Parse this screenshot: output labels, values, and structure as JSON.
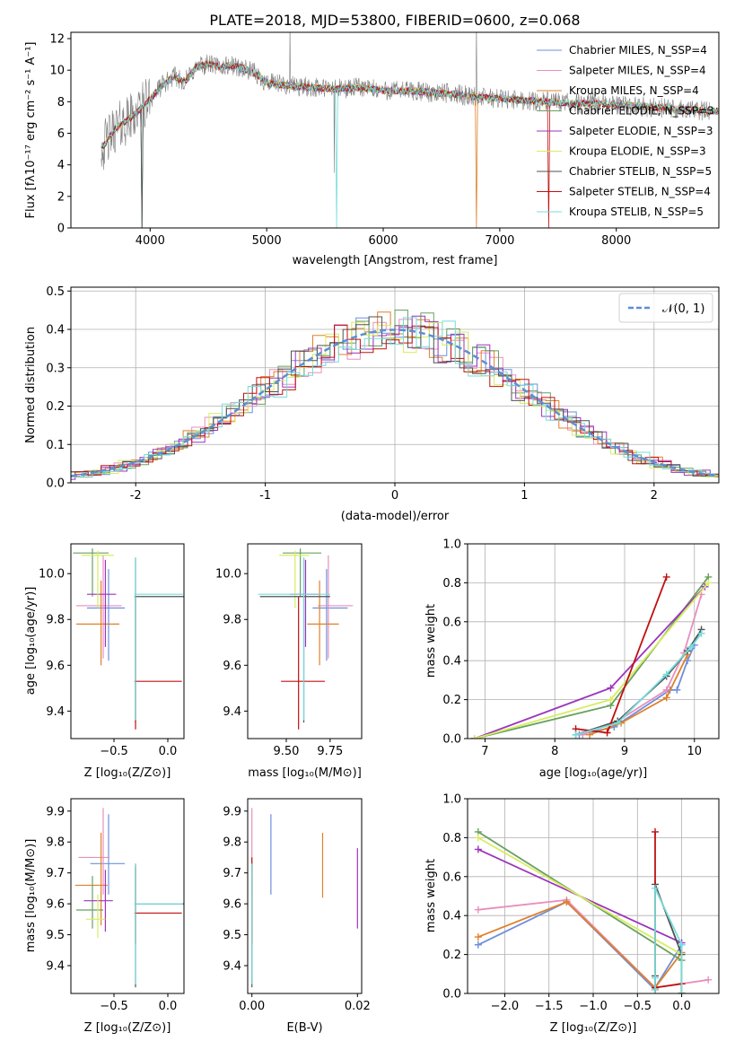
{
  "chart_data": [
    {
      "id": "spectrum",
      "type": "line",
      "title": "PLATE=2018, MJD=53800, FIBERID=0600, z=0.068",
      "xlabel": "wavelength [Angstrom, rest frame]",
      "ylabel": "Flux [fλ10⁻¹⁷ erg cm⁻² s⁻¹ A⁻¹]",
      "xlim": [
        3320,
        8880
      ],
      "ylim": [
        0,
        12.4
      ],
      "xticks": [
        4000,
        5000,
        6000,
        7000,
        8000
      ],
      "yticks": [
        0,
        2,
        4,
        6,
        8,
        10,
        12
      ],
      "grid": false,
      "legend_position": "top-right",
      "observed_continuum": {
        "x": [
          3600,
          3700,
          3800,
          3900,
          4000,
          4100,
          4200,
          4300,
          4400,
          4500,
          4600,
          4700,
          4800,
          4900,
          5000,
          5200,
          5400,
          5600,
          5800,
          6000,
          6200,
          6400,
          6600,
          6800,
          7000,
          7200,
          7400,
          7600,
          7800,
          8000,
          8200,
          8400,
          8600,
          8800
        ],
        "y": [
          5.2,
          6.3,
          6.8,
          7.4,
          8.2,
          9.0,
          9.6,
          9.3,
          10.2,
          10.4,
          10.2,
          10.3,
          10.1,
          9.8,
          9.2,
          9.0,
          8.9,
          8.8,
          8.9,
          8.7,
          8.7,
          8.6,
          8.5,
          8.3,
          8.2,
          8.1,
          8.0,
          7.9,
          7.9,
          7.8,
          7.7,
          7.6,
          7.5,
          7.4
        ]
      },
      "series": [
        {
          "name": "Chabrier MILES, N_SSP=4",
          "color": "#6d8fdc"
        },
        {
          "name": "Salpeter MILES, N_SSP=4",
          "color": "#e88fbd"
        },
        {
          "name": "Kroupa MILES, N_SSP=4",
          "color": "#e0802a"
        },
        {
          "name": "Chabrier ELODIE, N_SSP=3",
          "color": "#68a060"
        },
        {
          "name": "Salpeter ELODIE, N_SSP=3",
          "color": "#9b35bd"
        },
        {
          "name": "Kroupa ELODIE, N_SSP=3",
          "color": "#d8ec60"
        },
        {
          "name": "Chabrier STELIB, N_SSP=5",
          "color": "#505050"
        },
        {
          "name": "Salpeter STELIB, N_SSP=4",
          "color": "#c01010"
        },
        {
          "name": "Kroupa STELIB, N_SSP=5",
          "color": "#76dcdc"
        }
      ]
    },
    {
      "id": "residuals",
      "type": "line",
      "xlabel": "(data-model)/error",
      "ylabel": "Normed distribution",
      "xlim": [
        -2.5,
        2.5
      ],
      "ylim": [
        0,
        0.51
      ],
      "xticks": [
        -2,
        -1,
        0,
        1,
        2
      ],
      "yticks": [
        0.0,
        0.1,
        0.2,
        0.3,
        0.4,
        0.5
      ],
      "grid": true,
      "legend": "𝒩(0, 1)",
      "legend_position": "top-right",
      "gaussian": {
        "mean": 0,
        "sigma": 1,
        "color": "#5b8fd6"
      },
      "bin_width": 0.1
    },
    {
      "id": "age-vs-Z",
      "type": "scatter",
      "xlabel": "Z [log₁₀(Z/Z⊙)]",
      "ylabel": "age [log₁₀(age/yr)]",
      "xlim": [
        -0.9,
        0.15
      ],
      "ylim": [
        9.28,
        10.13
      ],
      "xticks": [
        -0.5,
        0.0
      ],
      "xtick_labels": [
        "−0.5",
        "0.0"
      ],
      "yticks": [
        9.4,
        9.6,
        9.8,
        10.0
      ],
      "yticks_labels": [
        "9.4",
        "9.6",
        "9.8",
        "10.0"
      ],
      "points": [
        {
          "series": 0,
          "x": -0.55,
          "xlo": -0.75,
          "xhi": -0.4,
          "y": 9.85,
          "ylo": 9.62,
          "yhi": 10.02
        },
        {
          "series": 1,
          "x": -0.6,
          "xlo": -0.85,
          "xhi": -0.43,
          "y": 9.86,
          "ylo": 9.63,
          "yhi": 10.08
        },
        {
          "series": 2,
          "x": -0.62,
          "xlo": -0.85,
          "xhi": -0.45,
          "y": 9.78,
          "ylo": 9.6,
          "yhi": 9.97
        },
        {
          "series": 3,
          "x": -0.7,
          "xlo": -0.88,
          "xhi": -0.55,
          "y": 10.09,
          "ylo": 9.9,
          "yhi": 10.11
        },
        {
          "series": 4,
          "x": -0.58,
          "xlo": -0.75,
          "xhi": -0.48,
          "y": 9.91,
          "ylo": 9.68,
          "yhi": 10.06
        },
        {
          "series": 5,
          "x": -0.65,
          "xlo": -0.8,
          "xhi": -0.5,
          "y": 10.08,
          "ylo": 9.85,
          "yhi": 10.1
        },
        {
          "series": 6,
          "x": -0.3,
          "xlo": -0.31,
          "xhi": 0.15,
          "y": 9.9,
          "ylo": 9.35,
          "yhi": 10.07
        },
        {
          "series": 7,
          "x": -0.3,
          "xlo": -0.31,
          "xhi": 0.13,
          "y": 9.53,
          "ylo": 9.32,
          "yhi": 9.9
        },
        {
          "series": 8,
          "x": -0.3,
          "xlo": -0.31,
          "xhi": 0.14,
          "y": 9.91,
          "ylo": 9.36,
          "yhi": 10.07
        }
      ]
    },
    {
      "id": "age-vs-mass",
      "type": "scatter",
      "xlabel": "mass [log₁₀(M/M⊙)]",
      "ylabel": "",
      "xlim": [
        9.28,
        9.93
      ],
      "ylim": [
        9.28,
        10.13
      ],
      "xticks": [
        9.5,
        9.75
      ],
      "xtick_labels": [
        "9.50",
        "9.75"
      ],
      "yticks": [
        9.4,
        9.6,
        9.8,
        10.0
      ],
      "yticks_labels": [
        "9.4",
        "9.6",
        "9.8",
        "10.0"
      ],
      "points": [
        {
          "series": 0,
          "x": 9.73,
          "xlo": 9.65,
          "xhi": 9.85,
          "y": 9.85,
          "ylo": 9.62,
          "yhi": 10.02
        },
        {
          "series": 1,
          "x": 9.74,
          "xlo": 9.68,
          "xhi": 9.88,
          "y": 9.86,
          "ylo": 9.63,
          "yhi": 10.08
        },
        {
          "series": 2,
          "x": 9.69,
          "xlo": 9.62,
          "xhi": 9.8,
          "y": 9.78,
          "ylo": 9.6,
          "yhi": 9.97
        },
        {
          "series": 3,
          "x": 9.58,
          "xlo": 9.48,
          "xhi": 9.7,
          "y": 10.09,
          "ylo": 9.9,
          "yhi": 10.11
        },
        {
          "series": 4,
          "x": 9.61,
          "xlo": 9.52,
          "xhi": 9.69,
          "y": 9.91,
          "ylo": 9.68,
          "yhi": 10.06
        },
        {
          "series": 5,
          "x": 9.55,
          "xlo": 9.46,
          "xhi": 9.63,
          "y": 10.08,
          "ylo": 9.85,
          "yhi": 10.1
        },
        {
          "series": 6,
          "x": 9.6,
          "xlo": 9.35,
          "xhi": 9.75,
          "y": 9.9,
          "ylo": 9.35,
          "yhi": 10.07
        },
        {
          "series": 7,
          "x": 9.57,
          "xlo": 9.47,
          "xhi": 9.72,
          "y": 9.53,
          "ylo": 9.32,
          "yhi": 9.9
        },
        {
          "series": 8,
          "x": 9.6,
          "xlo": 9.34,
          "xhi": 9.75,
          "y": 9.91,
          "ylo": 9.36,
          "yhi": 10.07
        }
      ]
    },
    {
      "id": "mass-weight-vs-age",
      "type": "line",
      "xlabel": "age [log₁₀(age/yr)]",
      "ylabel": "mass weight",
      "xlim": [
        6.75,
        10.35
      ],
      "ylim": [
        0,
        1.0
      ],
      "xticks": [
        7,
        8,
        9,
        10
      ],
      "yticks": [
        0.0,
        0.2,
        0.4,
        0.6,
        0.8,
        1.0
      ],
      "grid": true,
      "lines": [
        {
          "series": 0,
          "x": [
            8.35,
            8.85,
            9.65,
            9.75,
            9.9,
            10.0
          ],
          "y": [
            0.02,
            0.06,
            0.25,
            0.25,
            0.4,
            0.48
          ]
        },
        {
          "series": 1,
          "x": [
            8.4,
            8.9,
            9.6,
            9.85,
            10.1
          ],
          "y": [
            0.02,
            0.09,
            0.25,
            0.44,
            0.74
          ]
        },
        {
          "series": 2,
          "x": [
            8.5,
            8.95,
            9.6,
            9.9
          ],
          "y": [
            0.02,
            0.08,
            0.21,
            0.43
          ]
        },
        {
          "series": 3,
          "x": [
            6.85,
            8.8,
            10.2
          ],
          "y": [
            0.0,
            0.17,
            0.83
          ]
        },
        {
          "series": 4,
          "x": [
            6.85,
            8.8,
            10.15
          ],
          "y": [
            0.0,
            0.26,
            0.78
          ]
        },
        {
          "series": 5,
          "x": [
            6.85,
            8.8,
            10.2
          ],
          "y": [
            0.0,
            0.2,
            0.8
          ]
        },
        {
          "series": 6,
          "x": [
            8.3,
            8.9,
            9.6,
            9.9,
            10.1
          ],
          "y": [
            0.02,
            0.09,
            0.32,
            0.45,
            0.56
          ]
        },
        {
          "series": 7,
          "x": [
            8.3,
            8.75,
            9.6
          ],
          "y": [
            0.05,
            0.03,
            0.83
          ]
        },
        {
          "series": 8,
          "x": [
            8.3,
            8.9,
            9.6,
            9.95,
            10.1
          ],
          "y": [
            0.02,
            0.08,
            0.33,
            0.47,
            0.54
          ]
        }
      ]
    },
    {
      "id": "mass-vs-Z",
      "type": "scatter",
      "xlabel": "Z [log₁₀(Z/Z⊙)]",
      "ylabel": "mass [log₁₀(M/M⊙)]",
      "xlim": [
        -0.9,
        0.15
      ],
      "ylim": [
        9.31,
        9.94
      ],
      "xticks": [
        -0.5,
        0.0
      ],
      "xtick_labels": [
        "−0.5",
        "0.0"
      ],
      "yticks": [
        9.4,
        9.5,
        9.6,
        9.7,
        9.8,
        9.9
      ],
      "yticks_labels": [
        "9.4",
        "9.5",
        "9.6",
        "9.7",
        "9.8",
        "9.9"
      ],
      "points": [
        {
          "series": 0,
          "x": -0.55,
          "xlo": -0.72,
          "xhi": -0.4,
          "y": 9.73,
          "ylo": 9.63,
          "yhi": 9.89
        },
        {
          "series": 1,
          "x": -0.6,
          "xlo": -0.83,
          "xhi": -0.54,
          "y": 9.75,
          "ylo": 9.63,
          "yhi": 9.91
        },
        {
          "series": 2,
          "x": -0.62,
          "xlo": -0.86,
          "xhi": -0.56,
          "y": 9.66,
          "ylo": 9.53,
          "yhi": 9.83
        },
        {
          "series": 3,
          "x": -0.7,
          "xlo": -0.85,
          "xhi": -0.6,
          "y": 9.58,
          "ylo": 9.52,
          "yhi": 9.69
        },
        {
          "series": 4,
          "x": -0.58,
          "xlo": -0.78,
          "xhi": -0.51,
          "y": 9.61,
          "ylo": 9.51,
          "yhi": 9.71
        },
        {
          "series": 5,
          "x": -0.65,
          "xlo": -0.76,
          "xhi": -0.58,
          "y": 9.55,
          "ylo": 9.49,
          "yhi": 9.63
        },
        {
          "series": 6,
          "x": -0.3,
          "xlo": -0.31,
          "xhi": 0.15,
          "y": 9.6,
          "ylo": 9.33,
          "yhi": 9.73
        },
        {
          "series": 7,
          "x": -0.3,
          "xlo": -0.31,
          "xhi": 0.13,
          "y": 9.57,
          "ylo": 9.47,
          "yhi": 9.72
        },
        {
          "series": 8,
          "x": -0.3,
          "xlo": -0.31,
          "xhi": 0.14,
          "y": 9.6,
          "ylo": 9.34,
          "yhi": 9.73
        }
      ]
    },
    {
      "id": "mass-vs-EBV",
      "type": "scatter",
      "xlabel": "E(B-V)",
      "ylabel": "",
      "xlim": [
        -0.0008,
        0.0208
      ],
      "ylim": [
        9.31,
        9.94
      ],
      "xticks": [
        0.0,
        0.02
      ],
      "xtick_labels": [
        "0.00",
        "0.02"
      ],
      "yticks": [
        9.4,
        9.5,
        9.6,
        9.7,
        9.8,
        9.9
      ],
      "yticks_labels": [
        "9.4",
        "9.5",
        "9.6",
        "9.7",
        "9.8",
        "9.9"
      ],
      "points": [
        {
          "series": 0,
          "x": 0.0036,
          "ylo": 9.63,
          "yhi": 9.89
        },
        {
          "series": 1,
          "x": 0.0,
          "ylo": 9.63,
          "yhi": 9.91
        },
        {
          "series": 2,
          "x": 0.0134,
          "ylo": 9.62,
          "yhi": 9.83
        },
        {
          "series": 3,
          "x": 0.0,
          "ylo": 9.52,
          "yhi": 9.69
        },
        {
          "series": 4,
          "x": 0.02,
          "ylo": 9.52,
          "yhi": 9.78
        },
        {
          "series": 5,
          "x": 0.0,
          "ylo": 9.49,
          "yhi": 9.63
        },
        {
          "series": 6,
          "x": 0.0,
          "ylo": 9.33,
          "yhi": 9.73
        },
        {
          "series": 7,
          "x": 0.0,
          "ylo": 9.47,
          "yhi": 9.75
        },
        {
          "series": 8,
          "x": 0.0,
          "ylo": 9.34,
          "yhi": 9.73
        }
      ]
    },
    {
      "id": "mass-weight-vs-Z",
      "type": "line",
      "xlabel": "Z [log₁₀(Z/Z⊙)]",
      "ylabel": "mass weight",
      "xlim": [
        -2.42,
        0.42
      ],
      "ylim": [
        0,
        1.0
      ],
      "xticks": [
        -2.0,
        -1.5,
        -1.0,
        -0.5,
        0.0
      ],
      "xtick_labels": [
        "−2.0",
        "−1.5",
        "−1.0",
        "−0.5",
        "0.0"
      ],
      "yticks": [
        0.0,
        0.2,
        0.4,
        0.6,
        0.8,
        1.0
      ],
      "grid": true,
      "lines": [
        {
          "series": 0,
          "x": [
            -2.3,
            -1.3,
            -0.3,
            -0.3,
            0.0
          ],
          "y": [
            0.25,
            0.47,
            0.02,
            0.03,
            0.25
          ]
        },
        {
          "series": 1,
          "x": [
            -2.3,
            -1.3,
            -0.3,
            0.0,
            0.3
          ],
          "y": [
            0.43,
            0.48,
            0.03,
            0.05,
            0.07
          ]
        },
        {
          "series": 2,
          "x": [
            -2.3,
            -1.3,
            -0.3,
            0.0
          ],
          "y": [
            0.29,
            0.47,
            0.03,
            0.21
          ]
        },
        {
          "series": 3,
          "x": [
            -2.3,
            0.0,
            0.0
          ],
          "y": [
            0.83,
            0.17,
            0.0
          ]
        },
        {
          "series": 4,
          "x": [
            -2.3,
            0.0
          ],
          "y": [
            0.74,
            0.26
          ]
        },
        {
          "series": 5,
          "x": [
            -2.3,
            0.0,
            0.0
          ],
          "y": [
            0.8,
            0.2,
            0.0
          ]
        },
        {
          "series": 6,
          "x": [
            -0.3,
            -0.3,
            -0.3,
            0.0,
            0.0
          ],
          "y": [
            0.02,
            0.09,
            0.56,
            0.2,
            0.0
          ]
        },
        {
          "series": 7,
          "x": [
            -0.3,
            -0.3,
            0.0,
            0.0
          ],
          "y": [
            0.83,
            0.03,
            0.05,
            0.0
          ]
        },
        {
          "series": 8,
          "x": [
            -0.3,
            -0.3,
            -0.3,
            0.0,
            0.0
          ],
          "y": [
            0.02,
            0.08,
            0.54,
            0.25,
            0.0
          ]
        }
      ]
    }
  ]
}
